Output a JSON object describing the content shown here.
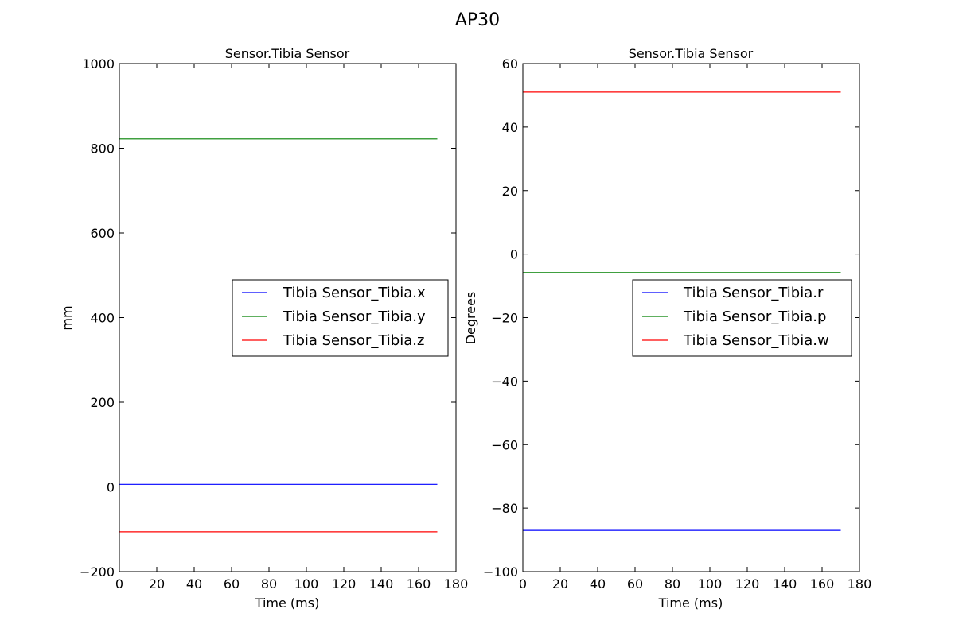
{
  "figure_title": "AP30",
  "chart_data": [
    {
      "type": "line",
      "title": "Sensor.Tibia Sensor",
      "xlabel": "Time (ms)",
      "ylabel": "mm",
      "xlim": [
        0,
        180
      ],
      "ylim": [
        -200,
        1000
      ],
      "xticks": [
        0,
        20,
        40,
        60,
        80,
        100,
        120,
        140,
        160,
        180
      ],
      "yticks": [
        -200,
        0,
        200,
        400,
        600,
        800,
        1000
      ],
      "ytick_labels": [
        "−200",
        "0",
        "200",
        "400",
        "600",
        "800",
        "1000"
      ],
      "legend_position": "center-right",
      "x": [
        0,
        170
      ],
      "series": [
        {
          "name": "Tibia Sensor_Tibia.x",
          "color": "#0000ff",
          "values": [
            6,
            6
          ]
        },
        {
          "name": "Tibia Sensor_Tibia.y",
          "color": "#008000",
          "values": [
            822,
            822
          ]
        },
        {
          "name": "Tibia Sensor_Tibia.z",
          "color": "#ff0000",
          "values": [
            -106,
            -106
          ]
        }
      ]
    },
    {
      "type": "line",
      "title": "Sensor.Tibia Sensor",
      "xlabel": "Time (ms)",
      "ylabel": "Degrees",
      "xlim": [
        0,
        180
      ],
      "ylim": [
        -100,
        60
      ],
      "xticks": [
        0,
        20,
        40,
        60,
        80,
        100,
        120,
        140,
        160,
        180
      ],
      "yticks": [
        -100,
        -80,
        -60,
        -40,
        -20,
        0,
        20,
        40,
        60
      ],
      "ytick_labels": [
        "−100",
        "−80",
        "−60",
        "−40",
        "−20",
        "0",
        "20",
        "40",
        "60"
      ],
      "legend_position": "center-right",
      "x": [
        0,
        170
      ],
      "series": [
        {
          "name": "Tibia Sensor_Tibia.r",
          "color": "#0000ff",
          "values": [
            -87,
            -87
          ]
        },
        {
          "name": "Tibia Sensor_Tibia.p",
          "color": "#008000",
          "values": [
            -5.8,
            -5.8
          ]
        },
        {
          "name": "Tibia Sensor_Tibia.w",
          "color": "#ff0000",
          "values": [
            51,
            51
          ]
        }
      ]
    }
  ]
}
